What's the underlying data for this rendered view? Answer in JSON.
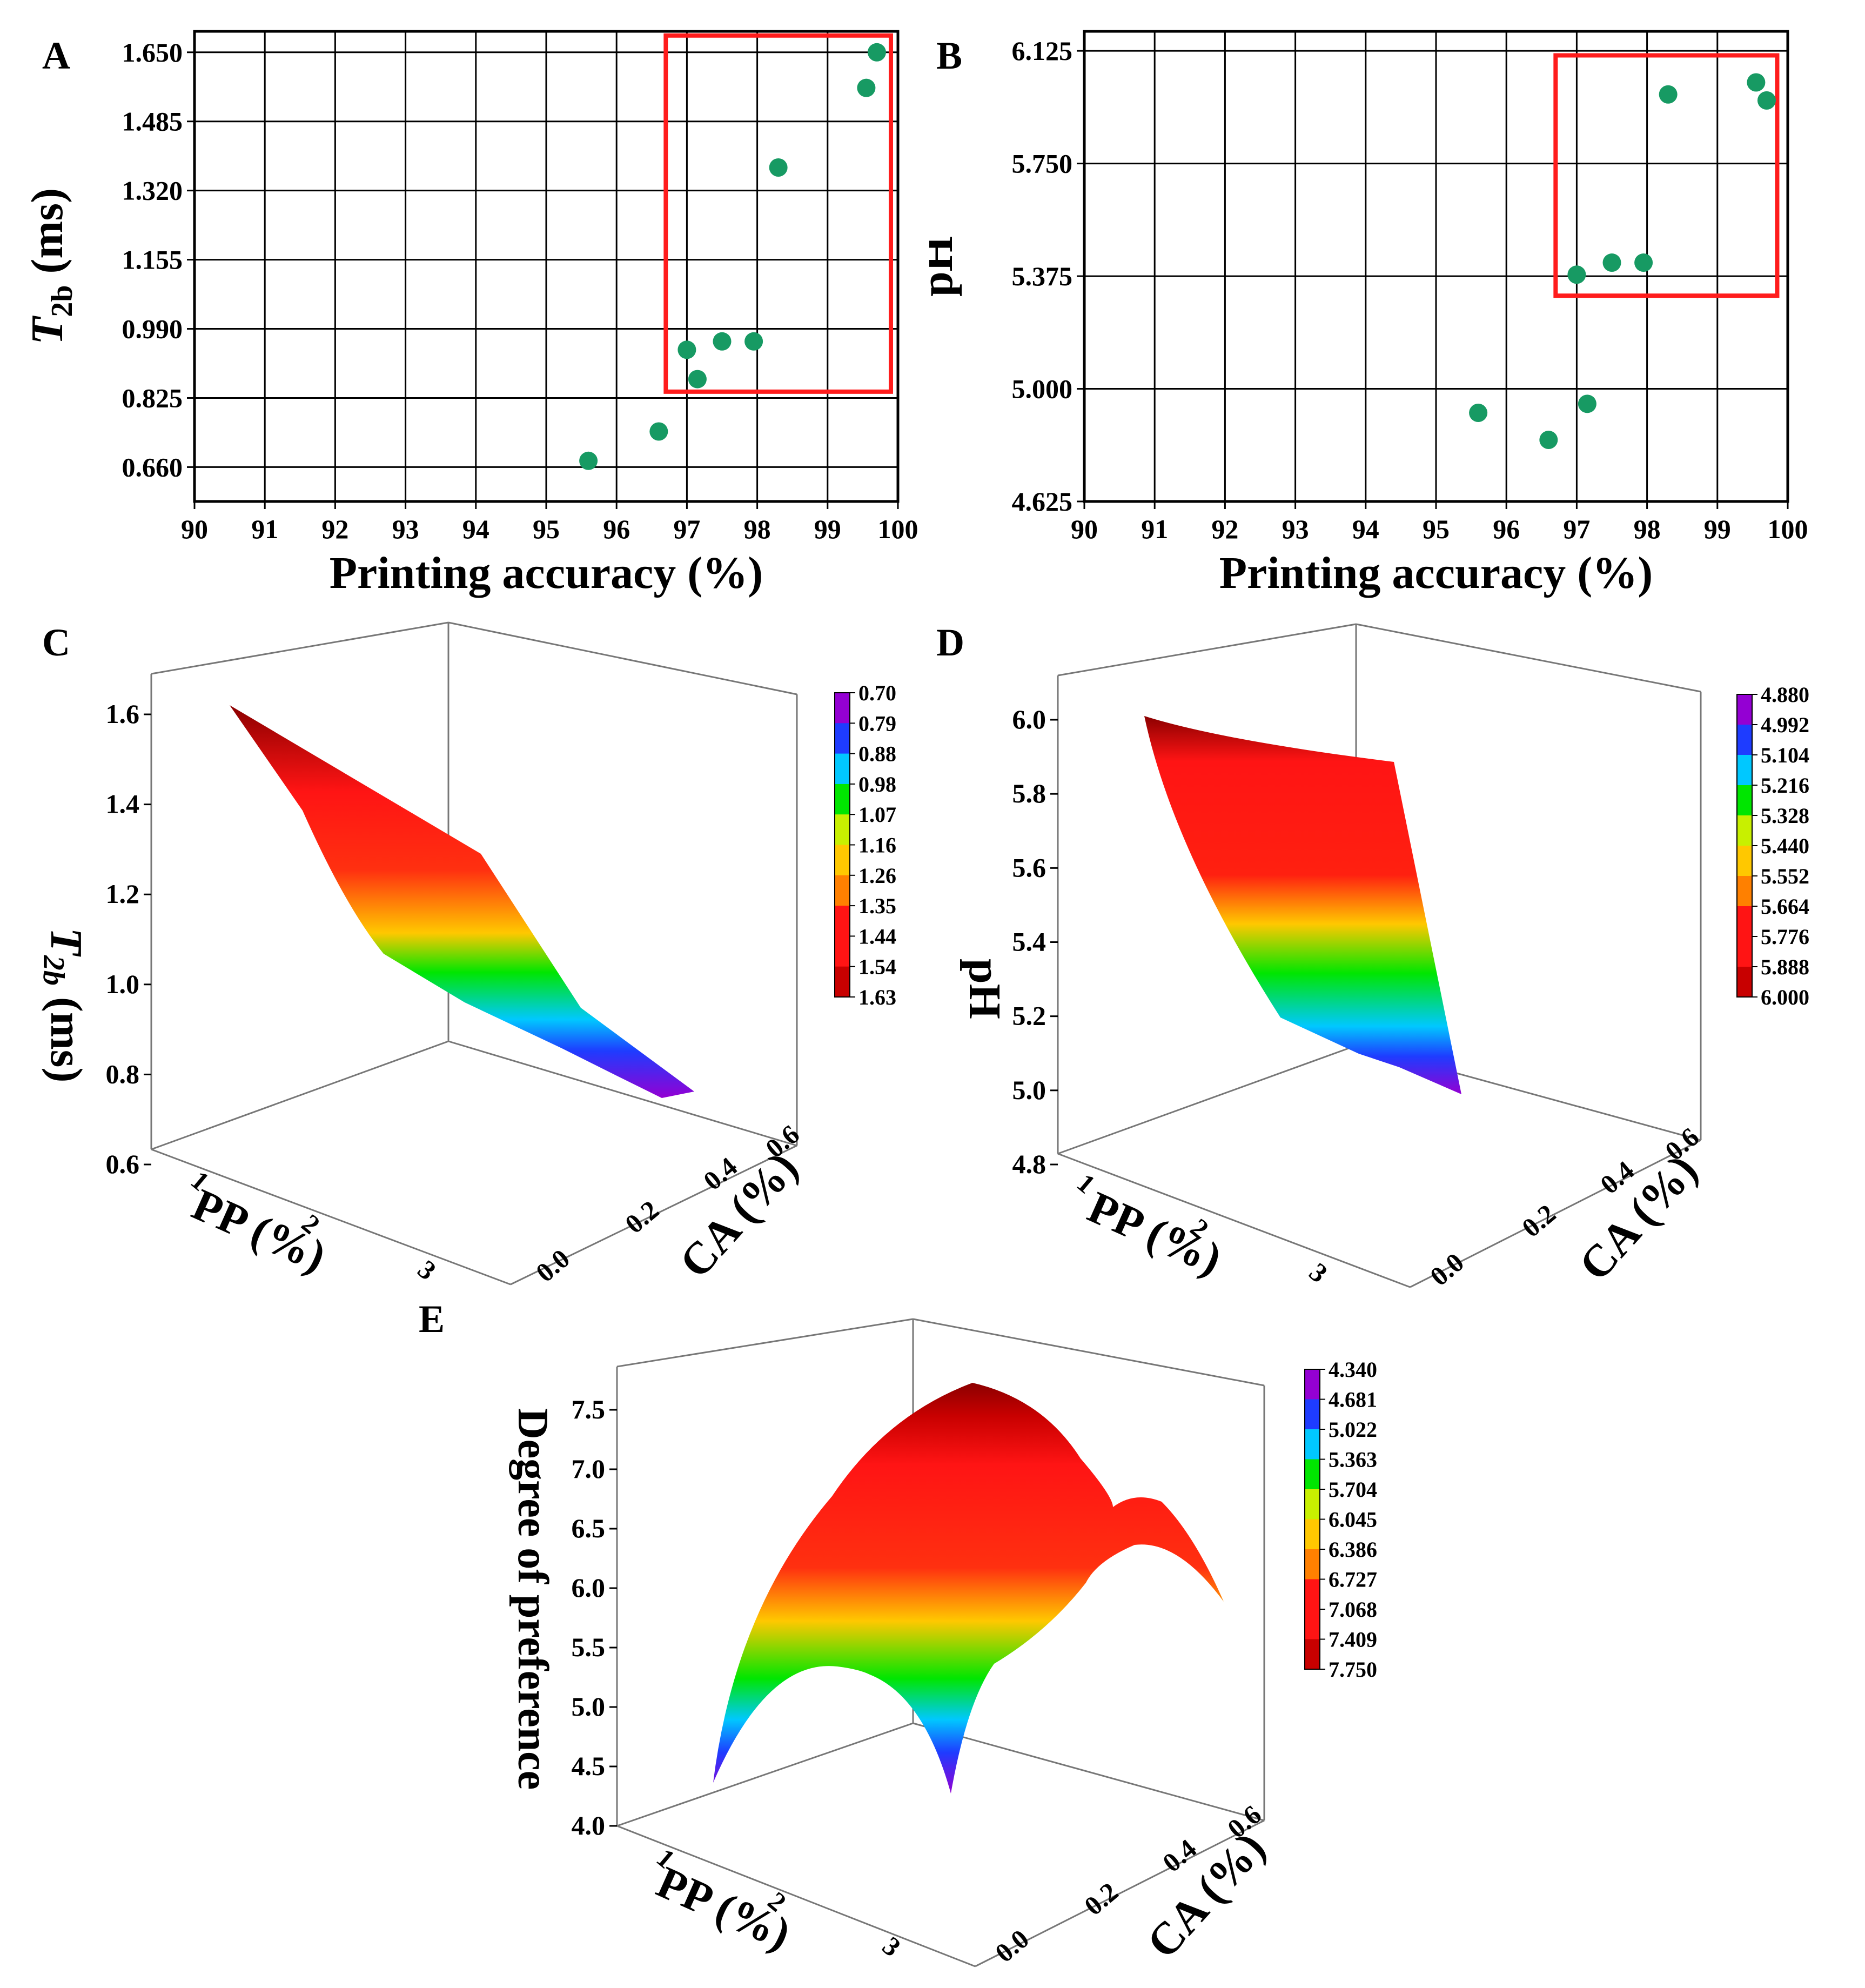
{
  "colors": {
    "point": "#179a63",
    "box": "#ff1c1c",
    "grid": "#000000"
  },
  "chart_data": [
    {
      "panel": "A",
      "type": "scatter",
      "xlabel": "Printing accuracy (%)",
      "ylabel_main": "T",
      "ylabel_sub": "2b",
      "ylabel_unit": " (ms)",
      "xlim": [
        90,
        100
      ],
      "ylim": [
        0.578,
        1.7
      ],
      "xticks": [
        "90",
        "91",
        "92",
        "93",
        "94",
        "95",
        "96",
        "97",
        "98",
        "99",
        "100"
      ],
      "yticks": [
        {
          "v": 0.66,
          "label": "0.660"
        },
        {
          "v": 0.825,
          "label": "0.825"
        },
        {
          "v": 0.99,
          "label": "0.990"
        },
        {
          "v": 1.155,
          "label": "1.155"
        },
        {
          "v": 1.32,
          "label": "1.320"
        },
        {
          "v": 1.485,
          "label": "1.485"
        },
        {
          "v": 1.65,
          "label": "1.650"
        }
      ],
      "points": [
        {
          "x": 95.6,
          "y": 0.675
        },
        {
          "x": 96.6,
          "y": 0.745
        },
        {
          "x": 97.0,
          "y": 0.94
        },
        {
          "x": 97.15,
          "y": 0.87
        },
        {
          "x": 97.5,
          "y": 0.96
        },
        {
          "x": 97.95,
          "y": 0.96
        },
        {
          "x": 98.3,
          "y": 1.375
        },
        {
          "x": 99.55,
          "y": 1.565
        },
        {
          "x": 99.7,
          "y": 1.65
        }
      ],
      "highlight": {
        "x0": 96.7,
        "x1": 99.9,
        "y0": 0.84,
        "y1": 1.69
      }
    },
    {
      "panel": "B",
      "type": "scatter",
      "xlabel": "Printing accuracy (%)",
      "ylabel_main": "pH",
      "ylabel_sub": "",
      "ylabel_unit": "",
      "xlim": [
        90,
        100
      ],
      "ylim": [
        4.625,
        6.19
      ],
      "xticks": [
        "90",
        "91",
        "92",
        "93",
        "94",
        "95",
        "96",
        "97",
        "98",
        "99",
        "100"
      ],
      "yticks": [
        {
          "v": 4.625,
          "label": "4.625"
        },
        {
          "v": 5.0,
          "label": "5.000"
        },
        {
          "v": 5.375,
          "label": "5.375"
        },
        {
          "v": 5.75,
          "label": "5.750"
        },
        {
          "v": 6.125,
          "label": "6.125"
        }
      ],
      "points": [
        {
          "x": 95.6,
          "y": 4.92
        },
        {
          "x": 96.6,
          "y": 4.83
        },
        {
          "x": 97.0,
          "y": 5.38
        },
        {
          "x": 97.15,
          "y": 4.95
        },
        {
          "x": 97.5,
          "y": 5.42
        },
        {
          "x": 97.95,
          "y": 5.42
        },
        {
          "x": 98.3,
          "y": 5.98
        },
        {
          "x": 99.55,
          "y": 6.02
        },
        {
          "x": 99.7,
          "y": 5.96
        }
      ],
      "highlight": {
        "x0": 96.7,
        "x1": 99.85,
        "y0": 5.31,
        "y1": 6.11
      }
    },
    {
      "panel": "C",
      "type": "surface3d",
      "zlabel_main": "T",
      "zlabel_sub": "2b",
      "zlabel_unit": " (ms)",
      "xlabel": "PP (%)",
      "ylabel": "CA (%)",
      "zticks": [
        "0.6",
        "0.8",
        "1.0",
        "1.2",
        "1.4",
        "1.6"
      ],
      "xticks": [
        "1",
        "2",
        "3"
      ],
      "yticks": [
        "0.0",
        "0.2",
        "0.4",
        "0.6"
      ],
      "colorbar": [
        "0.70",
        "0.79",
        "0.88",
        "0.98",
        "1.07",
        "1.16",
        "1.26",
        "1.35",
        "1.44",
        "1.54",
        "1.63"
      ]
    },
    {
      "panel": "D",
      "type": "surface3d",
      "zlabel_main": "pH",
      "zlabel_sub": "",
      "zlabel_unit": "",
      "xlabel": "PP (%)",
      "ylabel": "CA (%)",
      "zticks": [
        "4.8",
        "5.0",
        "5.2",
        "5.4",
        "5.6",
        "5.8",
        "6.0"
      ],
      "xticks": [
        "1",
        "2",
        "3"
      ],
      "yticks": [
        "0.0",
        "0.2",
        "0.4",
        "0.6"
      ],
      "colorbar": [
        "4.880",
        "4.992",
        "5.104",
        "5.216",
        "5.328",
        "5.440",
        "5.552",
        "5.664",
        "5.776",
        "5.888",
        "6.000"
      ]
    },
    {
      "panel": "E",
      "type": "surface3d",
      "zlabel_main": "Degree of preference",
      "zlabel_sub": "",
      "zlabel_unit": "",
      "xlabel": "PP (%)",
      "ylabel": "CA (%)",
      "zticks": [
        "4.0",
        "4.5",
        "5.0",
        "5.5",
        "6.0",
        "6.5",
        "7.0",
        "7.5"
      ],
      "xticks": [
        "1",
        "2",
        "3"
      ],
      "yticks": [
        "0.0",
        "0.2",
        "0.4",
        "0.6"
      ],
      "colorbar": [
        "4.340",
        "4.681",
        "5.022",
        "5.363",
        "5.704",
        "6.045",
        "6.386",
        "6.727",
        "7.068",
        "7.409",
        "7.750"
      ]
    }
  ]
}
